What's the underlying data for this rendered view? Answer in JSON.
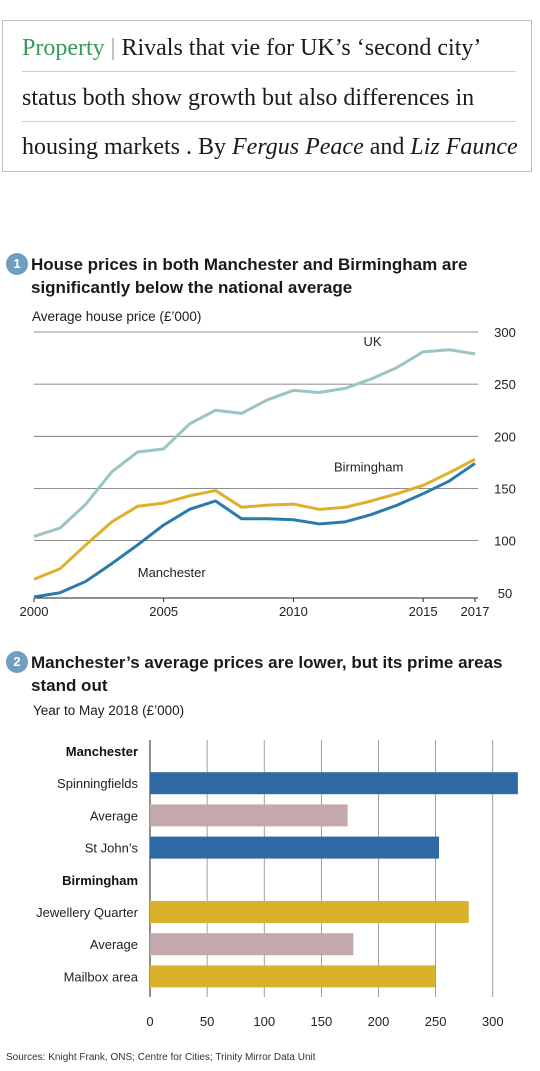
{
  "headline": {
    "kicker": "Property",
    "separator": "|",
    "line1_rest": "Rivals that vie for UK’s ‘second city’",
    "line2": "status both show growth but also differences in",
    "line3_start": "housing markets . By",
    "author1": "Fergus Peace",
    "and": "and",
    "author2": "Liz Faunce"
  },
  "source": "Sources: Knight Frank, ONS; Centre for Cities; Trinity Mirror Data Unit",
  "chart_data": [
    {
      "type": "line",
      "number": "1",
      "title": "House prices in both Manchester and Birmingham are significantly below the national average",
      "ylabel": "Average house price (£’000)",
      "xlabel": "",
      "x": [
        2000,
        2001,
        2002,
        2003,
        2004,
        2005,
        2006,
        2007,
        2008,
        2009,
        2010,
        2011,
        2012,
        2013,
        2014,
        2015,
        2016,
        2017
      ],
      "xticks": [
        "2000",
        "2005",
        "2010",
        "2015",
        "2017"
      ],
      "yticks": [
        "50",
        "100",
        "150",
        "200",
        "250",
        "300"
      ],
      "xlim": [
        2000,
        2017
      ],
      "ylim": [
        45,
        300
      ],
      "grid": true,
      "series": [
        {
          "name": "UK",
          "color": "#9bc5c4",
          "values": [
            104,
            112,
            135,
            166,
            185,
            188,
            212,
            225,
            222,
            235,
            244,
            242,
            246,
            255,
            266,
            281,
            283,
            279
          ]
        },
        {
          "name": "Birmingham",
          "color": "#e0b02c",
          "values": [
            63,
            73,
            96,
            118,
            133,
            136,
            143,
            148,
            132,
            134,
            135,
            130,
            132,
            138,
            145,
            153,
            165,
            178
          ]
        },
        {
          "name": "Manchester",
          "color": "#2a7aab",
          "values": [
            46,
            50,
            61,
            78,
            96,
            115,
            130,
            138,
            121,
            121,
            120,
            116,
            118,
            125,
            134,
            145,
            157,
            174
          ]
        }
      ]
    },
    {
      "type": "bar",
      "number": "2",
      "title": "Manchester’s average prices are lower, but its prime areas stand out",
      "ylabel": "Year to May 2018 (£’000)",
      "xlabel": "",
      "xlim": [
        0,
        330
      ],
      "xticks": [
        "0",
        "50",
        "100",
        "150",
        "200",
        "250",
        "300"
      ],
      "grid": true,
      "rows": [
        {
          "label": "Manchester",
          "header": true
        },
        {
          "label": "Spinningfields",
          "value": 322,
          "color": "#2f68a2"
        },
        {
          "label": "Average",
          "value": 173,
          "color": "#c4a9ac"
        },
        {
          "label": "St John’s",
          "value": 253,
          "color": "#2f68a2"
        },
        {
          "label": "Birmingham",
          "header": true
        },
        {
          "label": "Jewellery Quarter",
          "value": 279,
          "color": "#d9b22c"
        },
        {
          "label": "Average",
          "value": 178,
          "color": "#c4a9ac"
        },
        {
          "label": "Mailbox area",
          "value": 250,
          "color": "#d9b22c"
        }
      ]
    }
  ]
}
